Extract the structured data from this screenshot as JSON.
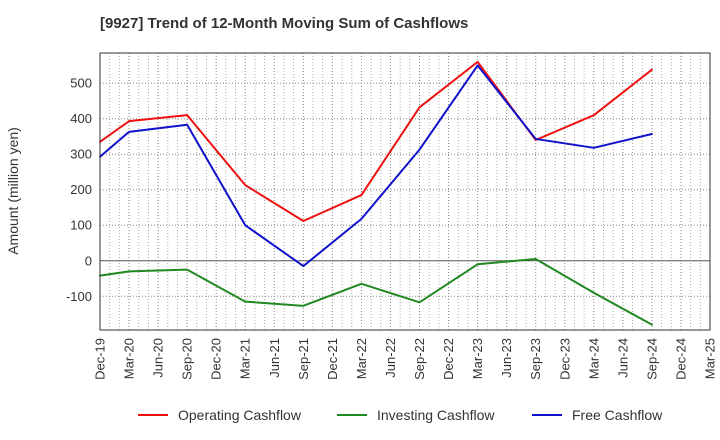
{
  "chart_data": {
    "type": "line",
    "title": "[9927]  Trend of 12-Month Moving Sum of Cashflows",
    "xlabel": "",
    "ylabel": "Amount (million yen)",
    "categories": [
      "Dec-19",
      "Mar-20",
      "Jun-20",
      "Sep-20",
      "Dec-20",
      "Mar-21",
      "Jun-21",
      "Sep-21",
      "Dec-21",
      "Mar-22",
      "Jun-22",
      "Sep-22",
      "Dec-22",
      "Mar-23",
      "Jun-23",
      "Sep-23",
      "Dec-23",
      "Mar-24",
      "Jun-24",
      "Sep-24",
      "Dec-24",
      "Mar-25"
    ],
    "ylim": [
      -195,
      585
    ],
    "yticks": [
      -100,
      0,
      100,
      200,
      300,
      400,
      500
    ],
    "grid": true,
    "legend_position": "bottom",
    "series": [
      {
        "name": "Operating Cashflow",
        "color": "#ee1111",
        "values": [
          335,
          393,
          null,
          410,
          null,
          213,
          null,
          112,
          null,
          185,
          null,
          432,
          null,
          560,
          null,
          340,
          null,
          410,
          null,
          538,
          null,
          null
        ]
      },
      {
        "name": "Investing Cashflow",
        "color": "#228822",
        "values": [
          -42,
          -30,
          null,
          -25,
          null,
          -115,
          null,
          -127,
          null,
          -65,
          null,
          -117,
          null,
          -10,
          null,
          5,
          null,
          -90,
          null,
          -180,
          null,
          null
        ]
      },
      {
        "name": "Free Cashflow",
        "color": "#1111cc",
        "values": [
          293,
          363,
          null,
          383,
          null,
          100,
          null,
          -15,
          null,
          118,
          null,
          313,
          null,
          550,
          null,
          343,
          null,
          318,
          null,
          357,
          null,
          null
        ]
      }
    ]
  }
}
